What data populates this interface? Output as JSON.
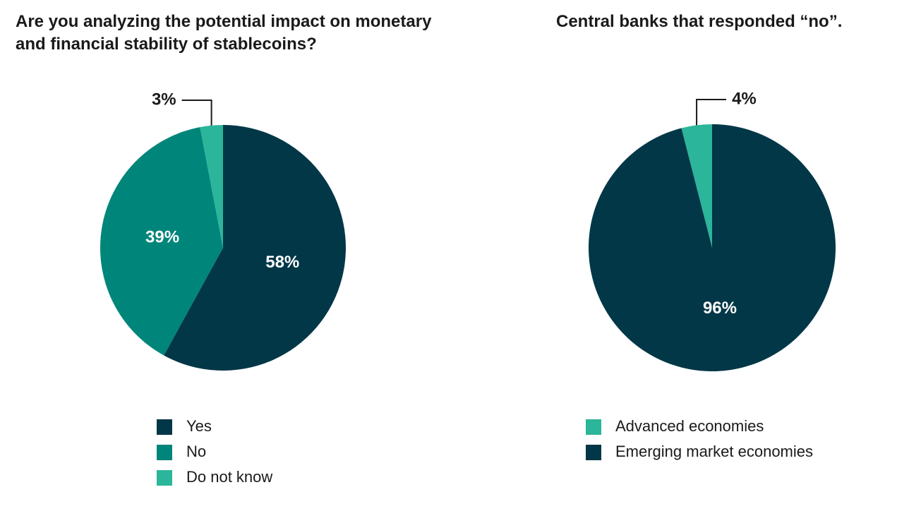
{
  "chart_data": [
    {
      "type": "pie",
      "title": "Are you analyzing the potential impact on monetary and financial stability of stablecoins?",
      "direction": "clockwise",
      "series": [
        {
          "name": "Yes",
          "color": "#023747",
          "values": [
            58
          ],
          "value_labels": [
            "58%"
          ]
        },
        {
          "name": "No",
          "color": "#00857a",
          "values": [
            39
          ],
          "value_labels": [
            "39%"
          ]
        },
        {
          "name": "Do not know",
          "color": "#2bb59a",
          "values": [
            3
          ],
          "value_labels": [
            "3%"
          ]
        }
      ]
    },
    {
      "type": "pie",
      "title": "Central banks that responded “no”.",
      "direction": "counterclockwise",
      "series": [
        {
          "name": "Advanced economies",
          "color": "#2bb59a",
          "values": [
            4
          ],
          "value_labels": [
            "4%"
          ]
        },
        {
          "name": "Emerging market economies",
          "color": "#023747",
          "values": [
            96
          ],
          "value_labels": [
            "96%"
          ]
        }
      ]
    }
  ]
}
